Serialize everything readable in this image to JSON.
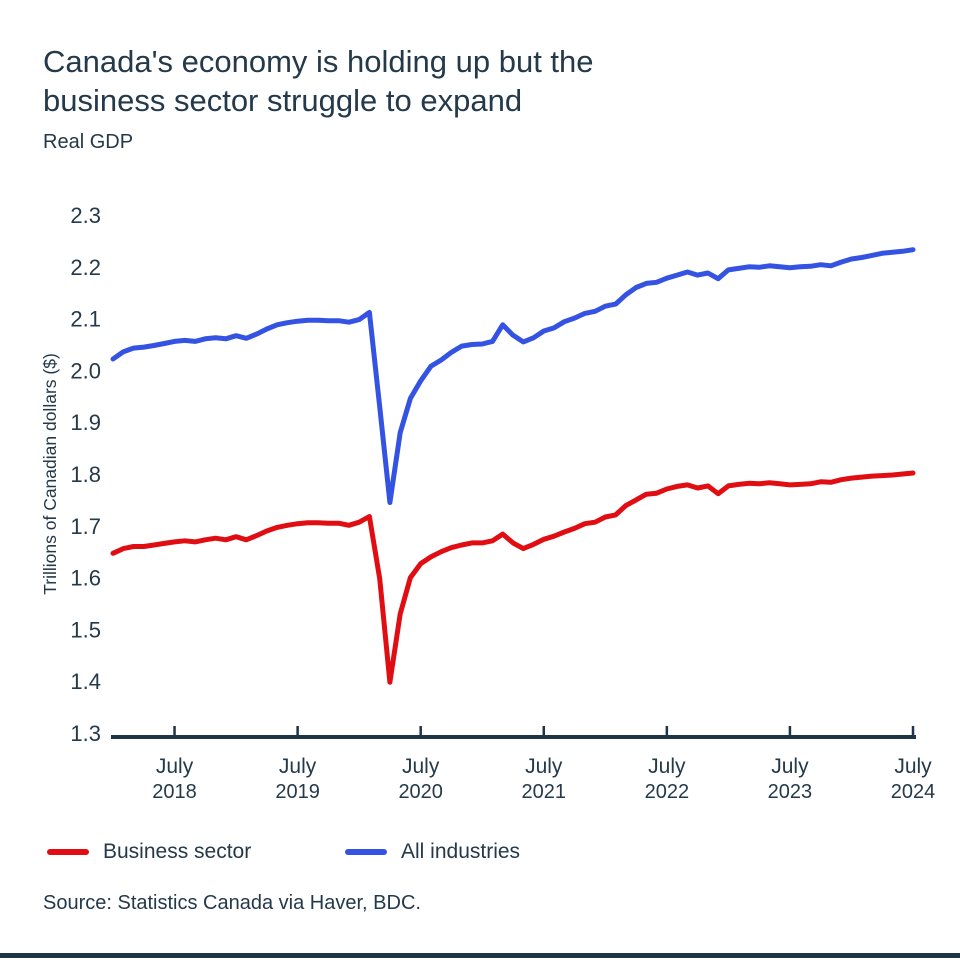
{
  "header": {
    "title_line1": "Canada's economy is holding up but the",
    "title_line2": "business sector struggle to expand",
    "subtitle": "Real GDP"
  },
  "footer": {
    "source": "Source: Statistics Canada via Haver, BDC."
  },
  "colors": {
    "text": "#24394a",
    "axis": "#1f3445",
    "business_sector": "#e00e13",
    "all_industries": "#3453e2"
  },
  "legend": {
    "items": [
      {
        "label": "Business sector",
        "color": "#e00e13"
      },
      {
        "label": "All industries",
        "color": "#3453e2"
      }
    ]
  },
  "chart_data": {
    "type": "line",
    "title": "Canada's economy is holding up but the business sector struggle to expand",
    "subtitle": "Real GDP",
    "xlabel": "",
    "ylabel": "Trillions of Canadian dollars ($)",
    "ylim": [
      1.3,
      2.3
    ],
    "yticks": [
      "2.3",
      "2.2",
      "2.1",
      "2.0",
      "1.9",
      "1.8",
      "1.7",
      "1.6",
      "1.5",
      "1.4",
      "1.3"
    ],
    "grid": false,
    "legend_position": "bottom",
    "x_tick_months": [
      "2018-07",
      "2019-07",
      "2020-07",
      "2021-07",
      "2022-07",
      "2023-07",
      "2024-07"
    ],
    "x_tick_labels": [
      {
        "month": "July",
        "year": "2018"
      },
      {
        "month": "July",
        "year": "2019"
      },
      {
        "month": "July",
        "year": "2020"
      },
      {
        "month": "July",
        "year": "2021"
      },
      {
        "month": "July",
        "year": "2022"
      },
      {
        "month": "July",
        "year": "2023"
      },
      {
        "month": "July",
        "year": "2024"
      }
    ],
    "x_months": [
      "2018-01",
      "2018-02",
      "2018-03",
      "2018-04",
      "2018-05",
      "2018-06",
      "2018-07",
      "2018-08",
      "2018-09",
      "2018-10",
      "2018-11",
      "2018-12",
      "2019-01",
      "2019-02",
      "2019-03",
      "2019-04",
      "2019-05",
      "2019-06",
      "2019-07",
      "2019-08",
      "2019-09",
      "2019-10",
      "2019-11",
      "2019-12",
      "2020-01",
      "2020-02",
      "2020-03",
      "2020-04",
      "2020-05",
      "2020-06",
      "2020-07",
      "2020-08",
      "2020-09",
      "2020-10",
      "2020-11",
      "2020-12",
      "2021-01",
      "2021-02",
      "2021-03",
      "2021-04",
      "2021-05",
      "2021-06",
      "2021-07",
      "2021-08",
      "2021-09",
      "2021-10",
      "2021-11",
      "2021-12",
      "2022-01",
      "2022-02",
      "2022-03",
      "2022-04",
      "2022-05",
      "2022-06",
      "2022-07",
      "2022-08",
      "2022-09",
      "2022-10",
      "2022-11",
      "2022-12",
      "2023-01",
      "2023-02",
      "2023-03",
      "2023-04",
      "2023-05",
      "2023-06",
      "2023-07",
      "2023-08",
      "2023-09",
      "2023-10",
      "2023-11",
      "2023-12",
      "2024-01",
      "2024-02",
      "2024-03",
      "2024-04",
      "2024-05",
      "2024-06",
      "2024-07"
    ],
    "series": [
      {
        "name": "Business sector",
        "color": "#e00e13",
        "values": [
          1.647,
          1.656,
          1.66,
          1.66,
          1.663,
          1.666,
          1.669,
          1.671,
          1.669,
          1.673,
          1.676,
          1.673,
          1.679,
          1.673,
          1.681,
          1.69,
          1.697,
          1.701,
          1.704,
          1.706,
          1.706,
          1.705,
          1.705,
          1.701,
          1.707,
          1.718,
          1.598,
          1.398,
          1.53,
          1.6,
          1.627,
          1.64,
          1.65,
          1.658,
          1.663,
          1.667,
          1.667,
          1.671,
          1.684,
          1.667,
          1.656,
          1.664,
          1.674,
          1.68,
          1.688,
          1.695,
          1.704,
          1.707,
          1.717,
          1.721,
          1.739,
          1.75,
          1.761,
          1.763,
          1.771,
          1.776,
          1.779,
          1.773,
          1.777,
          1.762,
          1.777,
          1.78,
          1.782,
          1.781,
          1.783,
          1.781,
          1.779,
          1.78,
          1.781,
          1.785,
          1.784,
          1.789,
          1.792,
          1.794,
          1.796,
          1.797,
          1.798,
          1.8,
          1.802
        ]
      },
      {
        "name": "All industries",
        "color": "#3453e2",
        "values": [
          2.022,
          2.036,
          2.043,
          2.045,
          2.048,
          2.052,
          2.056,
          2.058,
          2.056,
          2.061,
          2.063,
          2.061,
          2.067,
          2.062,
          2.07,
          2.08,
          2.088,
          2.092,
          2.095,
          2.097,
          2.097,
          2.096,
          2.096,
          2.093,
          2.098,
          2.112,
          1.93,
          1.745,
          1.88,
          1.946,
          1.98,
          2.008,
          2.02,
          2.035,
          2.047,
          2.05,
          2.051,
          2.056,
          2.088,
          2.068,
          2.055,
          2.063,
          2.076,
          2.082,
          2.094,
          2.101,
          2.11,
          2.114,
          2.124,
          2.128,
          2.146,
          2.16,
          2.168,
          2.17,
          2.178,
          2.184,
          2.19,
          2.184,
          2.188,
          2.177,
          2.194,
          2.197,
          2.2,
          2.199,
          2.202,
          2.2,
          2.198,
          2.2,
          2.201,
          2.204,
          2.202,
          2.209,
          2.215,
          2.218,
          2.222,
          2.226,
          2.228,
          2.23,
          2.233
        ]
      }
    ]
  }
}
